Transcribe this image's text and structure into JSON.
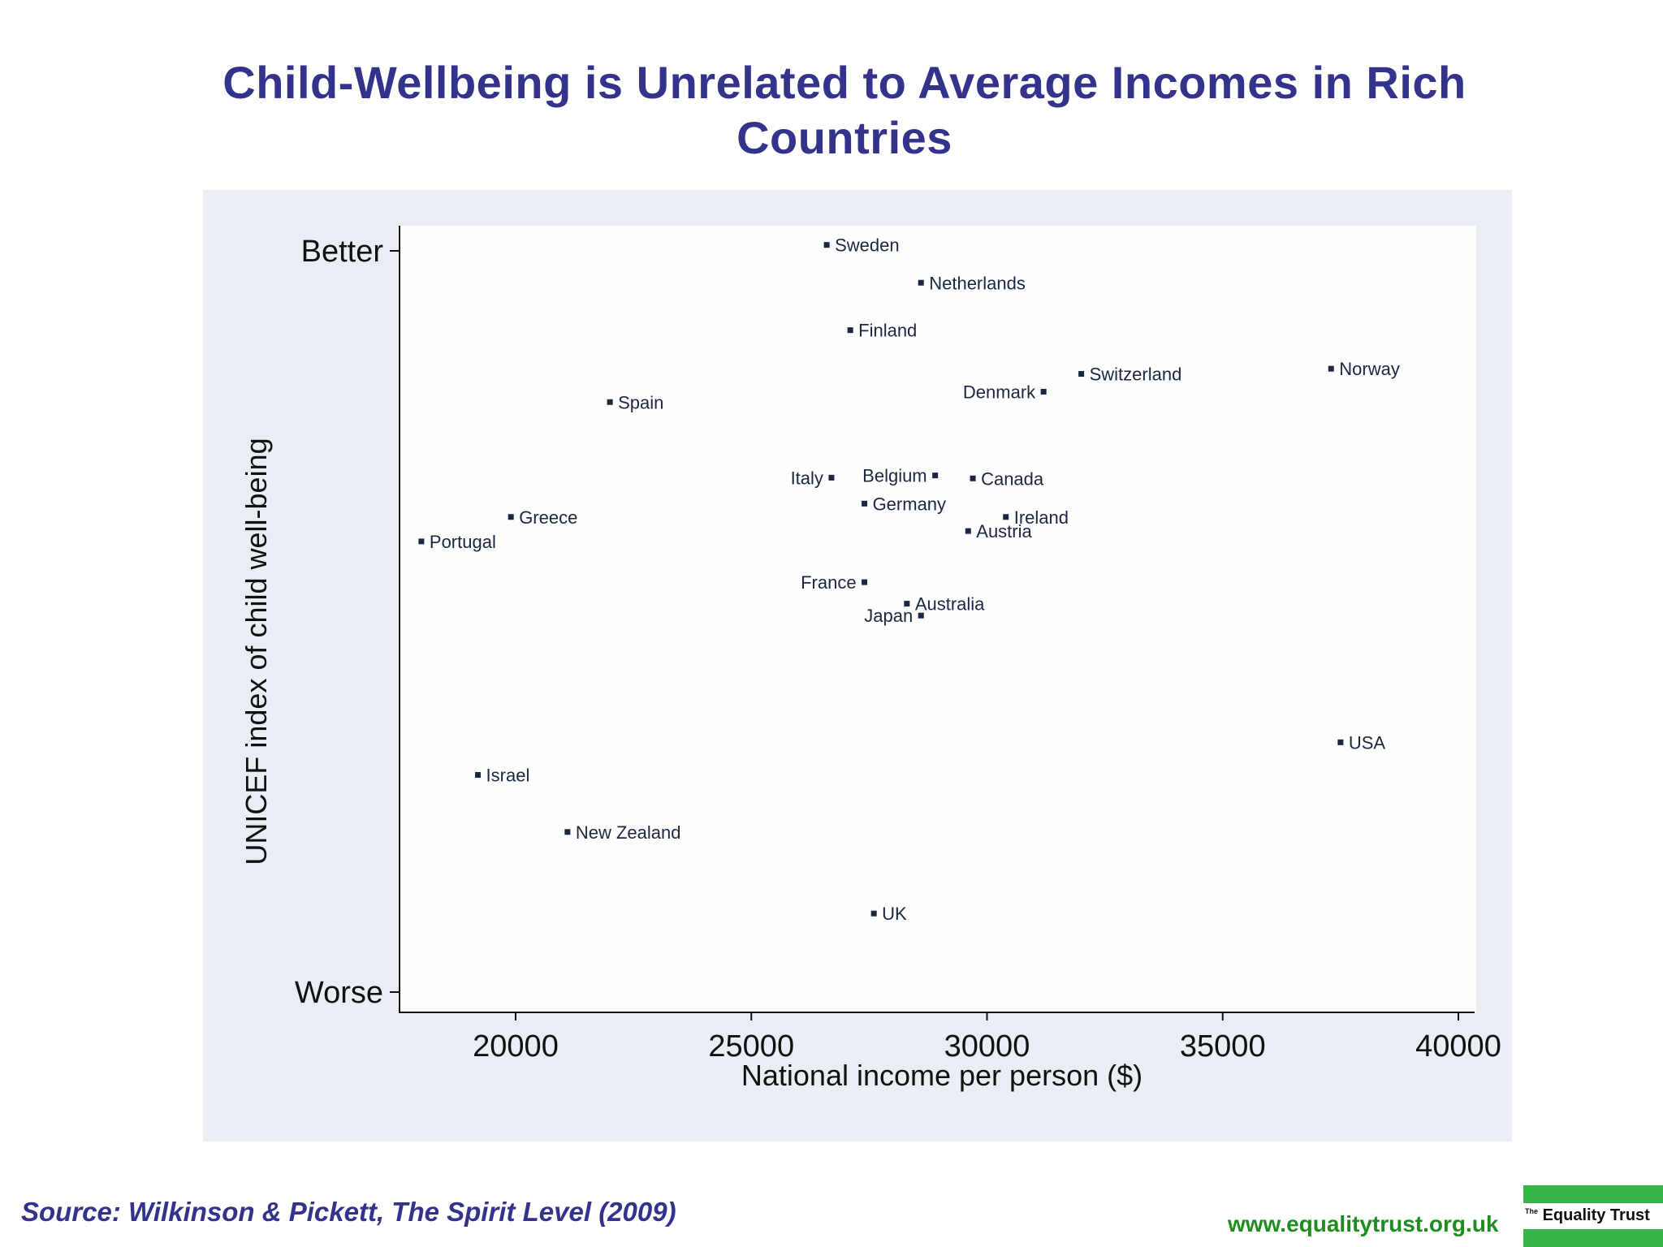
{
  "title": "Child-Wellbeing is Unrelated to Average Incomes in Rich Countries",
  "source": "Source: Wilkinson & Pickett, The Spirit Level (2009)",
  "website": "www.equalitytrust.org.uk",
  "logo": {
    "prefix": "The",
    "name": "Equality Trust"
  },
  "colors": {
    "title": "#33338c",
    "panel_background": "#e8eef3",
    "plot_background": "#fdfdfe",
    "marker": "#1a2740",
    "label": "#1a2740",
    "website": "#1e8c1e",
    "logo_green": "#36b44a"
  },
  "chart_data": {
    "type": "scatter",
    "title": "Child-Wellbeing is Unrelated to Average Incomes in Rich Countries",
    "xlabel": "National income per person ($)",
    "ylabel": "UNICEF index of child well-being",
    "xlim": [
      17500,
      40400
    ],
    "xticks": [
      20000,
      25000,
      30000,
      35000,
      40000
    ],
    "ylim": [
      0,
      100
    ],
    "yticks": [
      {
        "value": 100,
        "label": "Better"
      },
      {
        "value": 0,
        "label": "Worse"
      }
    ],
    "grid": false,
    "points": [
      {
        "label": "Sweden",
        "x": 26600,
        "y": 100.8,
        "label_side": "right"
      },
      {
        "label": "Netherlands",
        "x": 28600,
        "y": 95.7,
        "label_side": "right"
      },
      {
        "label": "Finland",
        "x": 27100,
        "y": 89.3,
        "label_side": "right"
      },
      {
        "label": "Switzerland",
        "x": 32000,
        "y": 83.4,
        "label_side": "right"
      },
      {
        "label": "Norway",
        "x": 37300,
        "y": 84.1,
        "label_side": "right"
      },
      {
        "label": "Denmark",
        "x": 31200,
        "y": 81.0,
        "label_side": "left"
      },
      {
        "label": "Spain",
        "x": 22000,
        "y": 79.6,
        "label_side": "right"
      },
      {
        "label": "Italy",
        "x": 26700,
        "y": 69.4,
        "label_side": "left"
      },
      {
        "label": "Belgium",
        "x": 28900,
        "y": 69.7,
        "label_side": "left"
      },
      {
        "label": "Canada",
        "x": 29700,
        "y": 69.3,
        "label_side": "right"
      },
      {
        "label": "Germany",
        "x": 27400,
        "y": 65.9,
        "label_side": "right"
      },
      {
        "label": "Greece",
        "x": 19900,
        "y": 64.1,
        "label_side": "right"
      },
      {
        "label": "Ireland",
        "x": 30400,
        "y": 64.1,
        "label_side": "right"
      },
      {
        "label": "Austria",
        "x": 29600,
        "y": 62.2,
        "label_side": "right"
      },
      {
        "label": "Portugal",
        "x": 18000,
        "y": 60.8,
        "label_side": "right"
      },
      {
        "label": "France",
        "x": 27400,
        "y": 55.3,
        "label_side": "left"
      },
      {
        "label": "Australia",
        "x": 28300,
        "y": 52.4,
        "label_side": "right"
      },
      {
        "label": "Japan",
        "x": 28600,
        "y": 50.8,
        "label_side": "left"
      },
      {
        "label": "USA",
        "x": 37500,
        "y": 33.7,
        "label_side": "right"
      },
      {
        "label": "Israel",
        "x": 19200,
        "y": 29.3,
        "label_side": "right"
      },
      {
        "label": "New Zealand",
        "x": 21100,
        "y": 21.6,
        "label_side": "right"
      },
      {
        "label": "UK",
        "x": 27600,
        "y": 10.6,
        "label_side": "right"
      }
    ]
  }
}
